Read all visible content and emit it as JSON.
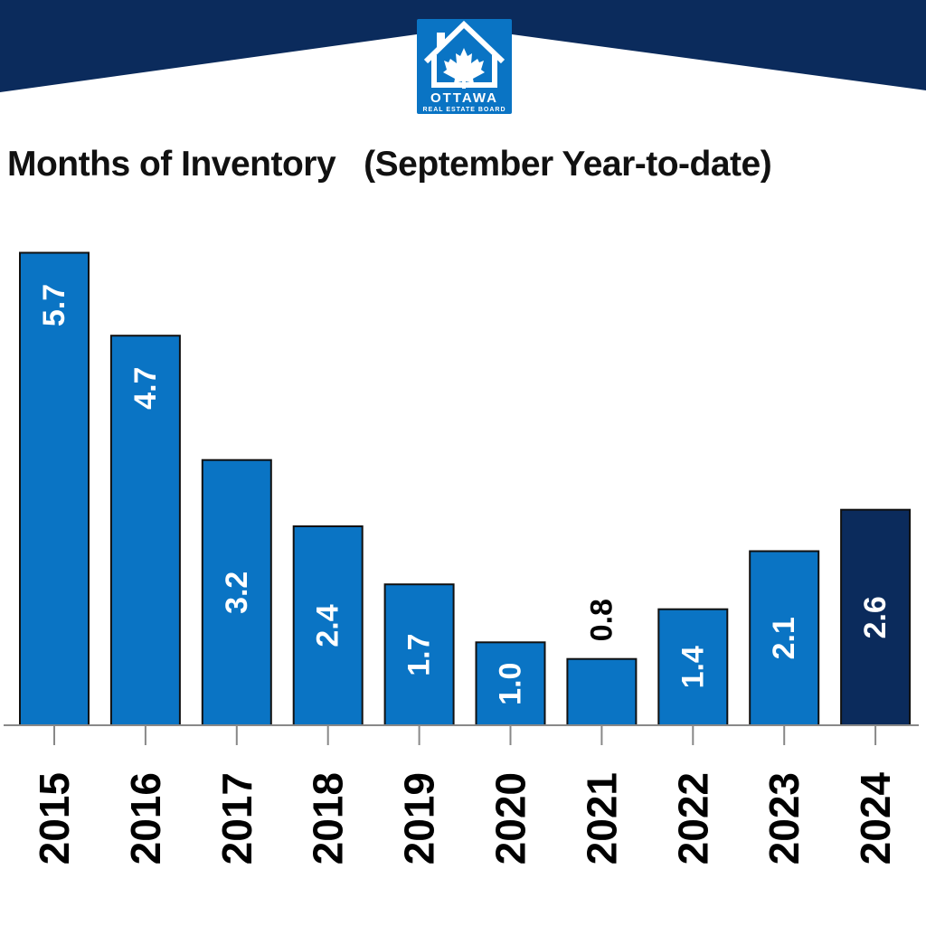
{
  "header": {
    "logo": {
      "name": "ottawa-real-estate-board-logo",
      "line1": "OTTAWA",
      "line2": "REAL ESTATE BOARD",
      "colors": {
        "background": "#0a74c4",
        "icon": "#ffffff",
        "maple_leaf": "#ffffff"
      }
    }
  },
  "colors": {
    "banner": "#0b2b5c",
    "bar": "#0a74c4",
    "bar_highlight": "#0b2b5c",
    "bar_outline": "#111111",
    "label_inside": "#ffffff",
    "label_outside": "#000000",
    "axis": "#888888"
  },
  "chart_data": {
    "type": "bar",
    "title": "Months of Inventory   (September Year-to-date)",
    "xlabel": "",
    "ylabel": "",
    "categories": [
      "2015",
      "2016",
      "2017",
      "2018",
      "2019",
      "2020",
      "2021",
      "2022",
      "2023",
      "2024"
    ],
    "values": [
      5.7,
      4.7,
      3.2,
      2.4,
      1.7,
      1.0,
      0.8,
      1.4,
      2.1,
      2.6
    ],
    "labels": [
      "5.7",
      "4.7",
      "3.2",
      "2.4",
      "1.7",
      "1.0",
      "0.8",
      "1.4",
      "2.1",
      "2.6"
    ],
    "highlight": "2024",
    "ylim": [
      0,
      6.0
    ],
    "grid": false,
    "legend": "none",
    "tick_label_orientation": "vertical",
    "value_label_orientation": "vertical"
  }
}
